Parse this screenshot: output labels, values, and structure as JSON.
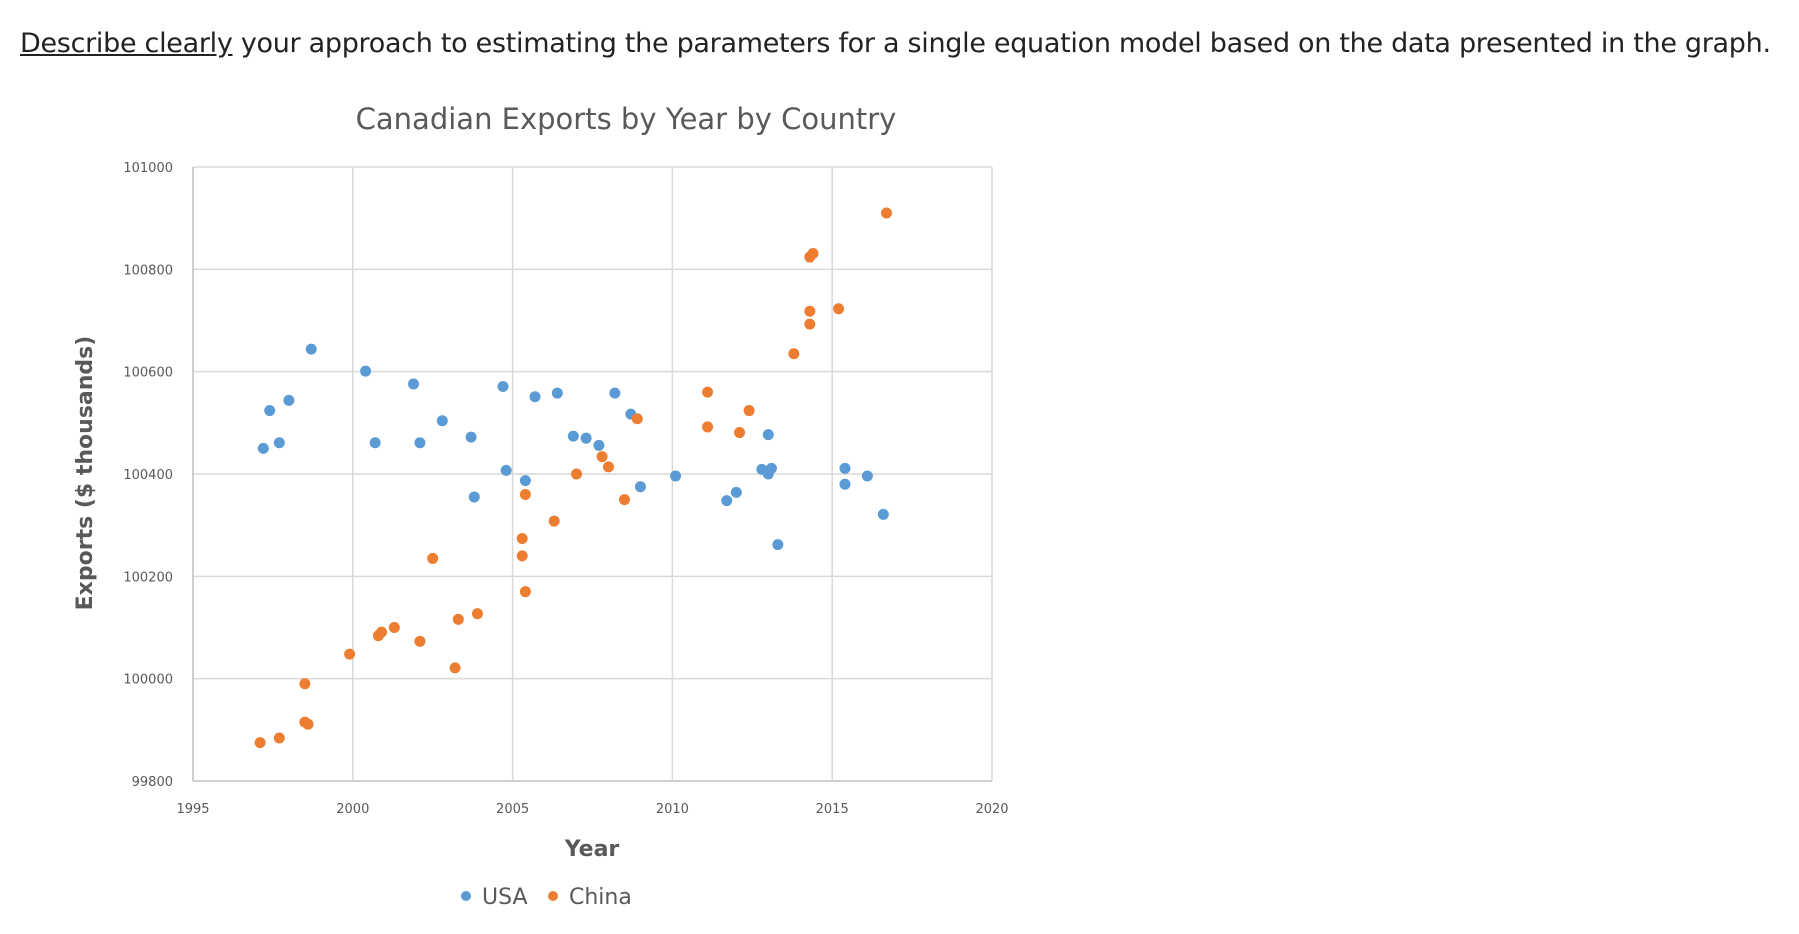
{
  "question": {
    "emphasis": "Describe clearly",
    "rest": " your approach to estimating the parameters for a single equation model based on the data presented in the graph."
  },
  "chart_data": {
    "type": "scatter",
    "title": "Canadian Exports by Year by Country",
    "xlabel": "Year",
    "ylabel": "Exports ($ thousands)",
    "xlim": [
      1995,
      2020
    ],
    "ylim": [
      99800,
      101000
    ],
    "xticks": [
      1995,
      2000,
      2005,
      2010,
      2015,
      2020
    ],
    "yticks": [
      99800,
      100000,
      100200,
      100400,
      100600,
      100800,
      101000
    ],
    "grid": true,
    "legend": "bottom",
    "series": [
      {
        "name": "USA",
        "color": "#5B9BD5",
        "points": [
          [
            1997.2,
            100450
          ],
          [
            1997.4,
            100524
          ],
          [
            1997.7,
            100461
          ],
          [
            1998.0,
            100544
          ],
          [
            1998.7,
            100644
          ],
          [
            2000.4,
            100601
          ],
          [
            2000.7,
            100461
          ],
          [
            2001.9,
            100576
          ],
          [
            2002.1,
            100461
          ],
          [
            2002.8,
            100504
          ],
          [
            2003.7,
            100472
          ],
          [
            2003.8,
            100355
          ],
          [
            2004.7,
            100571
          ],
          [
            2004.8,
            100407
          ],
          [
            2005.4,
            100387
          ],
          [
            2005.7,
            100551
          ],
          [
            2006.4,
            100558
          ],
          [
            2006.9,
            100474
          ],
          [
            2007.3,
            100470
          ],
          [
            2007.7,
            100456
          ],
          [
            2008.2,
            100558
          ],
          [
            2008.7,
            100517
          ],
          [
            2009.0,
            100375
          ],
          [
            2010.1,
            100396
          ],
          [
            2011.7,
            100348
          ],
          [
            2012.0,
            100364
          ],
          [
            2013.0,
            100477
          ],
          [
            2012.8,
            100409
          ],
          [
            2013.0,
            100400
          ],
          [
            2013.1,
            100411
          ],
          [
            2013.3,
            100262
          ],
          [
            2015.4,
            100411
          ],
          [
            2015.4,
            100380
          ],
          [
            2016.1,
            100396
          ],
          [
            2016.6,
            100321
          ]
        ]
      },
      {
        "name": "China",
        "color": "#ED7D31",
        "points": [
          [
            1997.1,
            99875
          ],
          [
            1997.7,
            99884
          ],
          [
            1998.5,
            99915
          ],
          [
            1998.6,
            99911
          ],
          [
            1998.5,
            99990
          ],
          [
            1999.9,
            100048
          ],
          [
            2000.8,
            100084
          ],
          [
            2000.9,
            100091
          ],
          [
            2001.3,
            100100
          ],
          [
            2002.1,
            100073
          ],
          [
            2002.5,
            100235
          ],
          [
            2003.2,
            100021
          ],
          [
            2003.3,
            100116
          ],
          [
            2003.9,
            100127
          ],
          [
            2005.3,
            100274
          ],
          [
            2005.3,
            100240
          ],
          [
            2005.4,
            100360
          ],
          [
            2005.4,
            100170
          ],
          [
            2006.3,
            100308
          ],
          [
            2007.0,
            100400
          ],
          [
            2007.8,
            100434
          ],
          [
            2008.0,
            100414
          ],
          [
            2008.5,
            100350
          ],
          [
            2008.9,
            100508
          ],
          [
            2011.1,
            100560
          ],
          [
            2011.1,
            100492
          ],
          [
            2012.1,
            100481
          ],
          [
            2012.4,
            100524
          ],
          [
            2013.8,
            100635
          ],
          [
            2014.3,
            100693
          ],
          [
            2014.3,
            100718
          ],
          [
            2014.3,
            100824
          ],
          [
            2014.4,
            100831
          ],
          [
            2015.2,
            100723
          ],
          [
            2016.7,
            100910
          ]
        ]
      }
    ]
  }
}
